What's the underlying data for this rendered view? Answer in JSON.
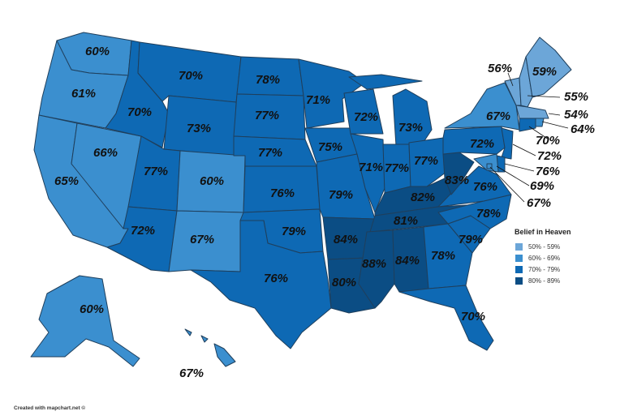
{
  "legend": {
    "title": "Belief in Heaven",
    "items": [
      {
        "label": "50% - 59%",
        "color": "#6ca6d8"
      },
      {
        "label": "60% - 69%",
        "color": "#3b8fcf"
      },
      {
        "label": "70% - 79%",
        "color": "#0e69b4"
      },
      {
        "label": "80% - 89%",
        "color": "#0b4d84"
      }
    ]
  },
  "credit": "Created with mapchart.net ©",
  "states": {
    "WA": "60%",
    "OR": "61%",
    "CA": "65%",
    "NV": "66%",
    "ID": "70%",
    "MT": "70%",
    "WY": "73%",
    "UT": "77%",
    "AZ": "72%",
    "CO": "60%",
    "NM": "67%",
    "ND": "78%",
    "SD": "77%",
    "NE": "77%",
    "KS": "76%",
    "OK": "79%",
    "TX": "76%",
    "MN": "71%",
    "IA": "75%",
    "MO": "79%",
    "AR": "84%",
    "LA": "80%",
    "WI": "72%",
    "IL": "71%",
    "MI": "73%",
    "IN": "77%",
    "OH": "77%",
    "KY": "82%",
    "TN": "81%",
    "MS": "88%",
    "AL": "84%",
    "GA": "78%",
    "FL": "70%",
    "SC": "79%",
    "NC": "78%",
    "VA": "76%",
    "WV": "83%",
    "PA": "72%",
    "NY": "67%",
    "ME": "59%",
    "VT": "56%",
    "NH": "55%",
    "MA": "54%",
    "RI": "64%",
    "CT": "70%",
    "NJ": "72%",
    "DE": "76%",
    "MD": "69%",
    "DC": "67%",
    "AK": "60%",
    "HI": "67%"
  }
}
